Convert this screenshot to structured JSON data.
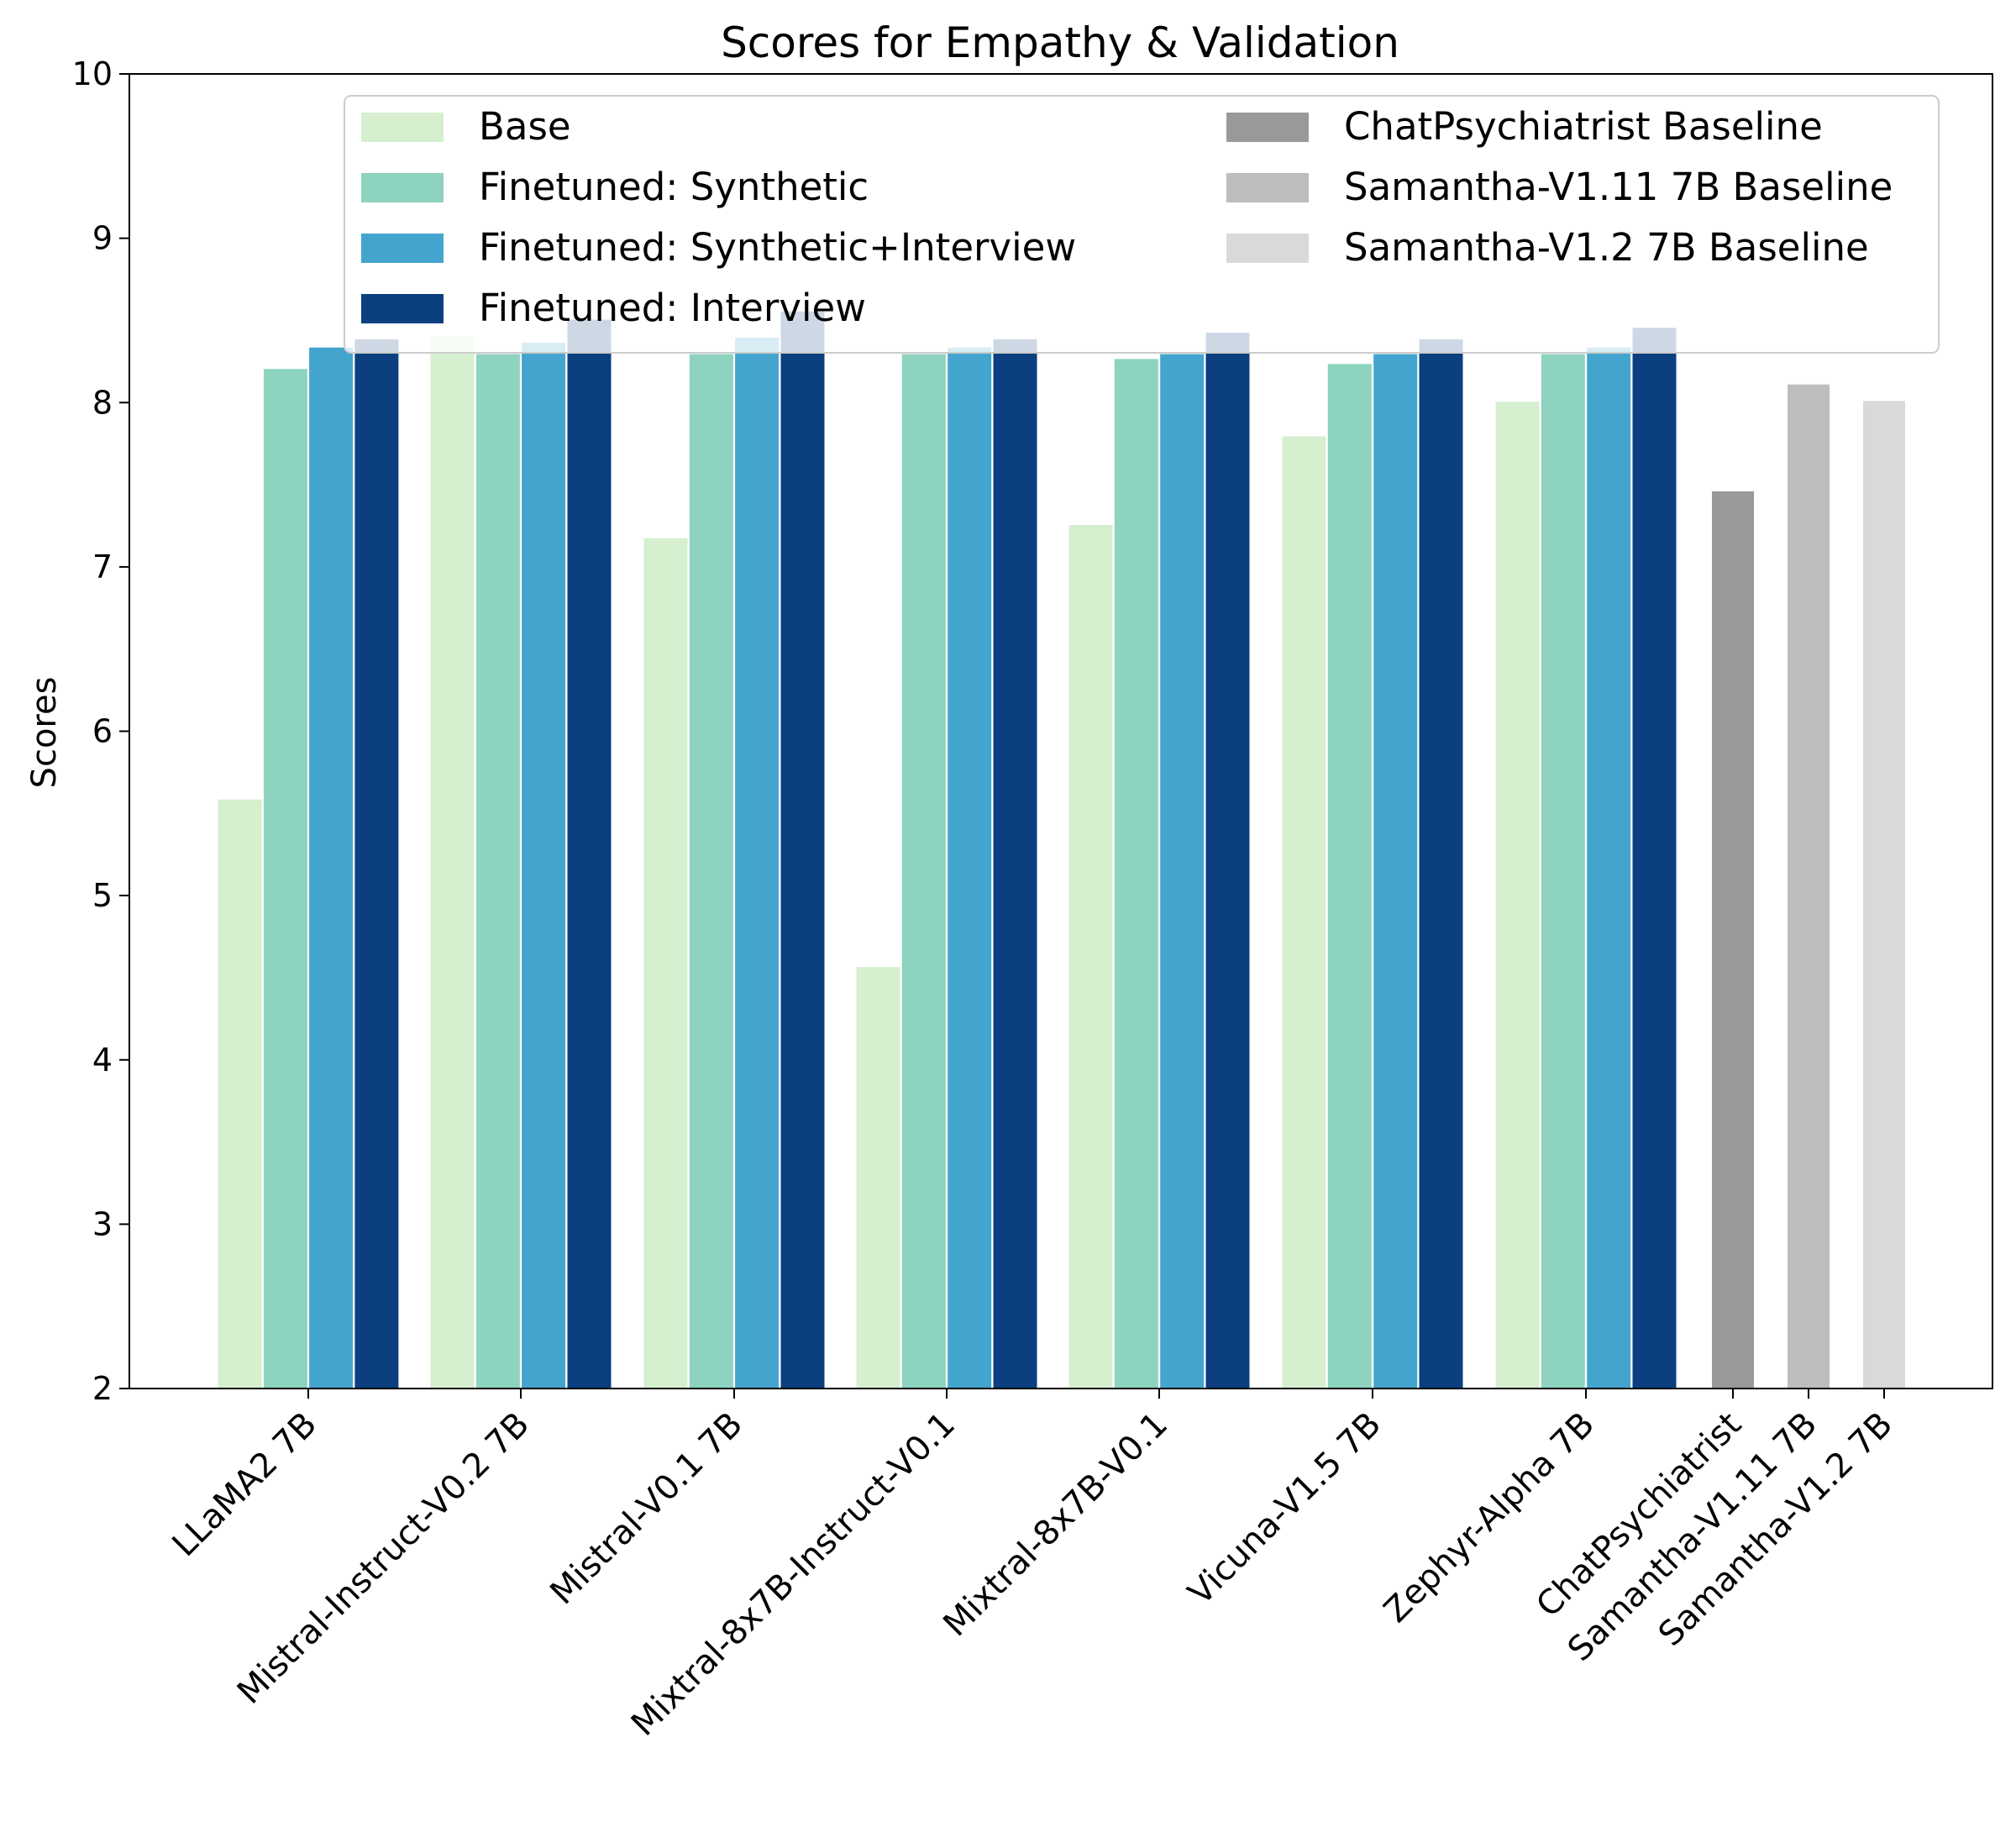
{
  "chart_data": {
    "type": "bar",
    "title": "Scores for Empathy & Validation",
    "xlabel": "",
    "ylabel": "Scores",
    "ylim": [
      2,
      10
    ],
    "yticks": [
      2,
      3,
      4,
      5,
      6,
      7,
      8,
      9,
      10
    ],
    "grid": false,
    "legend_placement": "top-right",
    "categories": [
      "LLaMA2 7B",
      "Mistral-Instruct-V0.2 7B",
      "Mistral-V0.1 7B",
      "Mixtral-8x7B-Instruct-V0.1",
      "Mixtral-8x7B-V0.1",
      "Vicuna-V1.5 7B",
      "Zephyr-Alpha 7B",
      "ChatPsychiatrist",
      "Samantha-V1.11 7B",
      "Samantha-V1.2 7B"
    ],
    "series": [
      {
        "name": "Base",
        "color": "#d5efcf",
        "values": [
          5.59,
          8.41,
          7.18,
          4.57,
          7.26,
          7.8,
          8.01,
          null,
          null,
          null
        ]
      },
      {
        "name": "Finetuned: Synthetic",
        "color": "#8dd3bf",
        "values": [
          8.21,
          8.3,
          8.3,
          8.3,
          8.27,
          8.24,
          8.3,
          null,
          null,
          null
        ]
      },
      {
        "name": "Finetuned: Synthetic+Interview",
        "color": "#43a5cd",
        "values": [
          8.34,
          8.37,
          8.4,
          8.34,
          8.3,
          8.3,
          8.34,
          null,
          null,
          null
        ]
      },
      {
        "name": "Finetuned: Interview",
        "color": "#0b3f7f",
        "values": [
          8.39,
          8.51,
          8.56,
          8.39,
          8.43,
          8.39,
          8.46,
          null,
          null,
          null
        ]
      },
      {
        "name": "ChatPsychiatrist Baseline",
        "color": "#999999",
        "values": [
          null,
          null,
          null,
          null,
          null,
          null,
          null,
          7.46,
          null,
          null
        ]
      },
      {
        "name": "Samantha-V1.11 7B Baseline",
        "color": "#bdbdbd",
        "values": [
          null,
          null,
          null,
          null,
          null,
          null,
          null,
          null,
          8.11,
          null
        ]
      },
      {
        "name": "Samantha-V1.2 7B Baseline",
        "color": "#d9d9d9",
        "values": [
          null,
          null,
          null,
          null,
          null,
          null,
          null,
          null,
          null,
          8.01
        ]
      }
    ]
  }
}
